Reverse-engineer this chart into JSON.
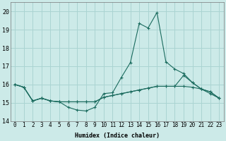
{
  "xlabel": "Humidex (Indice chaleur)",
  "bg_color": "#cceae8",
  "grid_color": "#aad4d2",
  "line_color": "#1a6b5e",
  "xlim": [
    -0.5,
    23.5
  ],
  "ylim": [
    14.0,
    20.5
  ],
  "yticks": [
    14,
    15,
    16,
    17,
    18,
    19,
    20
  ],
  "xticks": [
    0,
    1,
    2,
    3,
    4,
    5,
    6,
    7,
    8,
    9,
    10,
    11,
    12,
    13,
    14,
    15,
    16,
    17,
    18,
    19,
    20,
    21,
    22,
    23
  ],
  "series1": [
    16.0,
    15.85,
    15.1,
    15.25,
    15.1,
    15.05,
    14.75,
    14.6,
    14.55,
    14.75,
    15.5,
    15.55,
    16.4,
    17.2,
    19.35,
    19.1,
    19.95,
    17.25,
    16.85,
    16.6,
    16.1,
    15.75,
    15.5,
    15.25
  ],
  "series2": [
    16.0,
    15.85,
    15.1,
    15.25,
    15.1,
    15.05,
    15.05,
    15.05,
    15.05,
    15.05,
    15.3,
    15.4,
    15.5,
    15.6,
    15.7,
    15.8,
    15.9,
    15.9,
    15.9,
    15.9,
    15.85,
    15.75,
    15.6,
    15.25
  ],
  "series3": [
    16.0,
    15.85,
    15.1,
    15.25,
    15.1,
    15.05,
    15.05,
    15.05,
    15.05,
    15.05,
    15.3,
    15.4,
    15.5,
    15.6,
    15.7,
    15.8,
    15.9,
    15.9,
    15.9,
    16.5,
    16.1,
    15.75,
    15.6,
    15.25
  ],
  "xlabel_fontsize": 6,
  "tick_fontsize": 5.5
}
